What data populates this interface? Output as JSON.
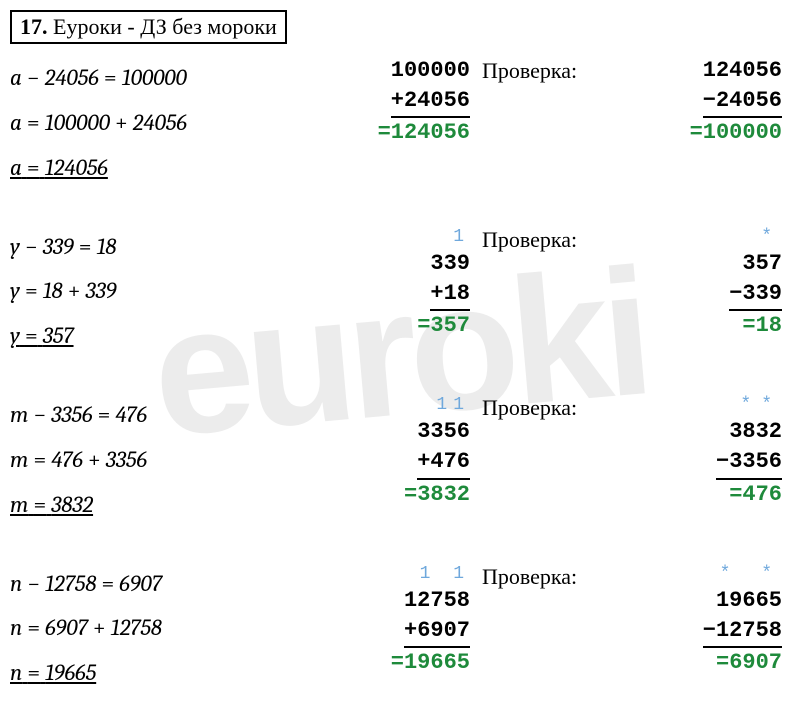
{
  "watermark": "euroki",
  "header": {
    "num": "17.",
    "text": " Еуроки - ДЗ без мороки"
  },
  "proverka_label": "Проверка:",
  "colors": {
    "result": "#1e8a3b",
    "carry": "#6fa8dc",
    "text": "#000000",
    "bg": "#ffffff"
  },
  "rows": [
    {
      "eq": {
        "var": "a",
        "sub": "24056",
        "rhs": "100000",
        "add1": "100000",
        "add2": "24056",
        "ans": "124056"
      },
      "calc": {
        "carry": "",
        "l1": "100000",
        "op": "+",
        "l2": "24056",
        "res": "124056"
      },
      "check": {
        "borrow": "",
        "l1": "124056",
        "op": "−",
        "l2": "24056",
        "res": "100000"
      }
    },
    {
      "eq": {
        "var": "y",
        "sub": "339",
        "rhs": "18",
        "add1": "18",
        "add2": "339",
        "ans": "357"
      },
      "calc": {
        "carry": "1",
        "l1": "339",
        "op": "+",
        "l2": "18",
        "res": "357"
      },
      "check": {
        "borrow": "*",
        "l1": "357",
        "op": "−",
        "l2": "339",
        "res": "18"
      }
    },
    {
      "eq": {
        "var": "m",
        "sub": "3356",
        "rhs": "476",
        "add1": "476",
        "add2": "3356",
        "ans": "3832"
      },
      "calc": {
        "carry": "11",
        "l1": "3356",
        "op": "+",
        "l2": "476",
        "res": "3832"
      },
      "check": {
        "borrow": "**",
        "l1": "3832",
        "op": "−",
        "l2": "3356",
        "res": "476"
      }
    },
    {
      "eq": {
        "var": "n",
        "sub": "12758",
        "rhs": "6907",
        "add1": "6907",
        "add2": "12758",
        "ans": "19665"
      },
      "calc": {
        "carry": "1 1",
        "l1": "12758",
        "op": "+",
        "l2": "6907",
        "res": "19665"
      },
      "check": {
        "borrow": "* *",
        "l1": "19665",
        "op": "−",
        "l2": "12758",
        "res": "6907"
      }
    }
  ]
}
